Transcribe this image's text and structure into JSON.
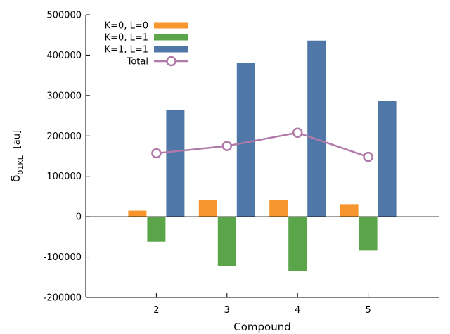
{
  "chart_data": {
    "type": "bar",
    "xlabel": "Compound",
    "ylabel_main": "δ",
    "ylabel_sub": "01KL",
    "ylabel_unit": "[au]",
    "x_ticks": [
      "2",
      "3",
      "4",
      "5"
    ],
    "x_values": [
      2,
      3,
      4,
      5
    ],
    "xlim": [
      1,
      6
    ],
    "ylim": [
      -200000,
      500000
    ],
    "y_ticks": [
      -200000,
      -100000,
      0,
      100000,
      200000,
      300000,
      400000,
      500000
    ],
    "y_tick_labels": [
      "-200000",
      "-100000",
      "0",
      "100000",
      "200000",
      "300000",
      "400000",
      "500000"
    ],
    "legend_position": "top-left",
    "grid": false,
    "series": [
      {
        "name": "K=0, L=0",
        "kind": "bar",
        "color": "#f7962e",
        "values": [
          15000,
          41000,
          42000,
          31000
        ]
      },
      {
        "name": "K=0, L=1",
        "kind": "bar",
        "color": "#5aa54a",
        "values": [
          -62000,
          -123000,
          -134000,
          -84000
        ]
      },
      {
        "name": "K=1, L=1",
        "kind": "bar",
        "color": "#4f77a7",
        "values": [
          265000,
          381000,
          436000,
          287000
        ]
      },
      {
        "name": "Total",
        "kind": "line",
        "color": "#b079a8",
        "values": [
          157000,
          175000,
          208000,
          148000
        ]
      }
    ]
  }
}
